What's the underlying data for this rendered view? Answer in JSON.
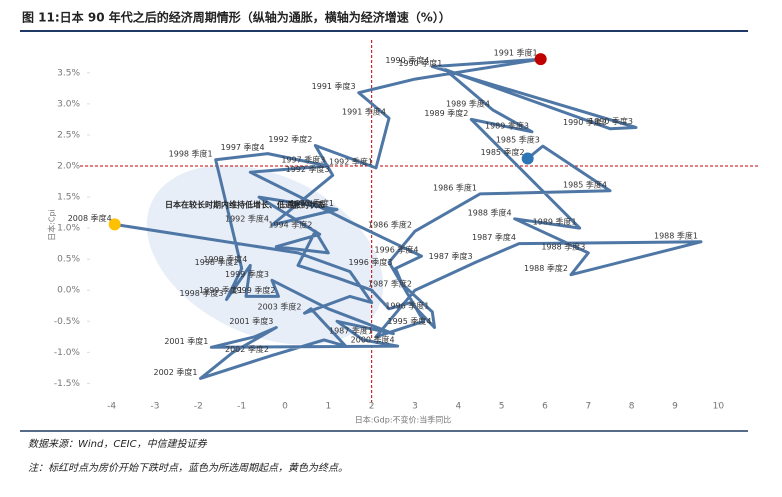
{
  "chart_data": {
    "type": "connected-scatter",
    "title": "图 11:日本 90 年代之后的经济周期情形（纵轴为通胀，横轴为经济增速（%））",
    "x_label": "日本:Gdp:不变价:当季同比",
    "y_label": "日本:Cpi",
    "annotation": "日本在较长时期内维持低增长、低通胀的状态",
    "source": "数据来源：Wind，CEIC，中信建投证券",
    "note": "注：标红时点为房价开始下跌时点，蓝色为所选周期起点，黄色为终点。",
    "color": "#4f77a6",
    "xlim": [
      -4.5,
      10.5
    ],
    "ylim": [
      -1.8,
      3.9
    ],
    "xticks": [
      -4,
      -3,
      -2,
      -1,
      0,
      1,
      2,
      3,
      4,
      5,
      6,
      7,
      8,
      9,
      10
    ],
    "yticks": [
      {
        "value": -1.5,
        "label": "-1.5%"
      },
      {
        "value": -1.0,
        "label": "-1.0%"
      },
      {
        "value": -0.5,
        "label": "-0.5%"
      },
      {
        "value": 0.0,
        "label": "0.0%"
      },
      {
        "value": 0.5,
        "label": "0.5%"
      },
      {
        "value": 1.0,
        "label": "1.0%"
      },
      {
        "value": 1.5,
        "label": "1.5%"
      },
      {
        "value": 2.0,
        "label": "2.0%"
      },
      {
        "value": 2.5,
        "label": "2.5%"
      },
      {
        "value": 3.0,
        "label": "3.0%"
      },
      {
        "value": 3.5,
        "label": "3.5%"
      }
    ],
    "reference_lines": {
      "x": 2,
      "y": 2,
      "color": "#c00000"
    },
    "x": [
      5.6,
      5.95,
      7.5,
      4.5,
      3.0,
      2.4,
      3.2,
      2.1,
      3.0,
      4.4,
      5.4,
      9.6,
      6.6,
      7.0,
      5.3,
      6.8,
      4.3,
      5.7,
      4.8,
      3.7,
      7.5,
      8.1,
      3.4,
      5.9,
      3.0,
      1.7,
      2.4,
      2.1,
      0.7,
      1.1,
      -0.3,
      1.2,
      -0.6,
      0.8,
      -0.2,
      1.0,
      0.7,
      0.3,
      1.2,
      2.0,
      2.4,
      2.9,
      3.45,
      3.4,
      2.7,
      2.55,
      3.15,
      1.5,
      -0.8,
      1.0,
      -0.4,
      -1.6,
      -1.0,
      -1.35,
      -0.8,
      -0.9,
      -0.15,
      -0.3,
      1.0,
      2.5,
      1.2,
      1.8,
      2.6,
      -1.7,
      -0.7,
      -0.2,
      -1.2,
      -1.95,
      -0.3,
      0.9,
      1.4,
      0.6,
      0.45,
      1.5,
      2.0,
      1.5,
      0.3,
      -3.93
    ],
    "y": [
      2.12,
      2.32,
      1.6,
      1.55,
      0.95,
      0.45,
      -0.5,
      -0.75,
      0.0,
      0.45,
      0.75,
      0.78,
      0.25,
      0.6,
      1.15,
      1.0,
      2.75,
      2.55,
      2.9,
      3.55,
      2.6,
      2.62,
      3.6,
      3.72,
      3.4,
      3.18,
      2.77,
      1.97,
      2.33,
      1.85,
      1.05,
      1.3,
      1.5,
      0.9,
      0.7,
      0.6,
      0.95,
      0.4,
      0.2,
      0.0,
      -0.3,
      -0.2,
      -0.6,
      -0.35,
      0.1,
      0.35,
      0.55,
      1.1,
      1.9,
      2.0,
      2.2,
      2.1,
      0.35,
      -0.15,
      0.4,
      -0.1,
      -0.1,
      0.16,
      -0.3,
      -0.7,
      -0.5,
      -0.8,
      -0.9,
      -0.92,
      -0.75,
      -0.6,
      -1.0,
      -1.42,
      -1.05,
      -0.8,
      -0.9,
      -0.3,
      -0.37,
      -0.1,
      -0.2,
      0.3,
      0.6,
      1.06
    ],
    "labels": [
      "1985 季度2",
      "1985 季度3",
      "1985 季度4",
      "1986 季度1",
      "1986 季度2",
      null,
      null,
      "1987 季度1",
      "1987 季度2",
      "1987 季度3",
      "1987 季度4",
      "1988 季度1",
      "1988 季度2",
      "1988 季度3",
      "1988 季度4",
      "1989 季度1",
      "1989 季度2",
      "1989 季度3",
      "1989 季度4",
      "1990 季度1",
      "1990 季度2",
      "1990 季度3",
      "1990 季度4",
      "1991 季度1",
      null,
      "1991 季度3",
      "1991 季度4",
      "1992 季度1",
      "1992 季度2",
      "1992 季度3",
      "1992 季度4",
      "1993 季度1",
      null,
      null,
      null,
      null,
      "1994 季度2",
      null,
      null,
      null,
      null,
      null,
      "1995 季度4",
      "1996 季度1",
      null,
      "1996 季度3",
      "1996 季度4",
      null,
      null,
      "1997 季度3",
      "1997 季度4",
      "1998 季度1",
      "1998 季度2",
      "1998 季度3",
      "1998 季度4",
      "1999 季度1",
      "1999 季度2",
      "1999 季度3",
      null,
      null,
      null,
      null,
      "2000 季度4",
      "2001 季度1",
      null,
      "2001 季度3",
      null,
      "2002 季度1",
      "2002 季度2",
      null,
      null,
      null,
      "2003 季度2",
      null,
      null,
      null,
      null,
      "2008 季度4"
    ],
    "markers": [
      {
        "index": 0,
        "color": "#2e75b6"
      },
      {
        "index": 23,
        "color": "#c00000"
      },
      {
        "index": 77,
        "color": "#ffc000"
      }
    ]
  }
}
